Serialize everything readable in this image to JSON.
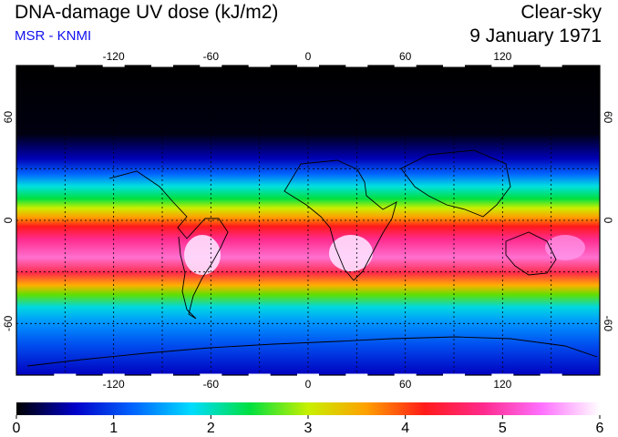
{
  "header": {
    "title": "DNA-damage UV dose (kJ/m2)",
    "source": "MSR - KNMI",
    "condition": "Clear-sky",
    "date": "9 January 1971"
  },
  "map": {
    "lon_range": [
      -180,
      180
    ],
    "lat_range": [
      -90,
      90
    ],
    "lon_ticks": [
      -120,
      -60,
      0,
      60,
      120
    ],
    "lat_ticks": [
      60,
      0,
      -60
    ],
    "lon_tick_labels": [
      "-120",
      "-60",
      "0",
      "60",
      "120"
    ],
    "lat_tick_labels": [
      "60",
      "0",
      "-60"
    ],
    "gridlines": true,
    "grid_lon": [
      -150,
      -120,
      -90,
      -60,
      -30,
      0,
      30,
      60,
      90,
      120,
      150
    ],
    "grid_lat": [
      60,
      30,
      0,
      -30,
      -60
    ]
  },
  "colorbar": {
    "min": 0,
    "max": 6,
    "tick_labels": [
      "0",
      "1",
      "2",
      "3",
      "4",
      "5",
      "6"
    ],
    "colors": [
      "#000000",
      "#0000c8",
      "#0064ff",
      "#00dcff",
      "#00e040",
      "#c8f000",
      "#ffa000",
      "#ff1a1a",
      "#ff2a8c",
      "#ff70ff",
      "#ffffff"
    ]
  }
}
